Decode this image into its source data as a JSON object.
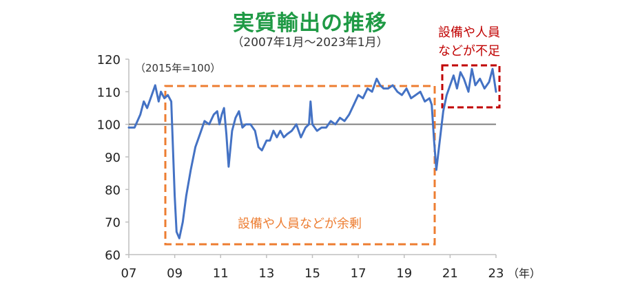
{
  "chart_data": {
    "type": "line",
    "title": "実質輸出の推移",
    "subtitle": "（2007年1月～2023年1月）",
    "index_note": "（2015年=100）",
    "x_unit_label": "（年）",
    "x_tick_labels": [
      "07",
      "09",
      "11",
      "13",
      "15",
      "17",
      "19",
      "21",
      "23"
    ],
    "x_tick_years": [
      2007,
      2009,
      2011,
      2013,
      2015,
      2017,
      2019,
      2021,
      2023
    ],
    "xlim": [
      2007.0,
      2023.0
    ],
    "ylim": [
      60,
      120
    ],
    "y_ticks": [
      60,
      70,
      80,
      90,
      100,
      110,
      120
    ],
    "y_tick_labels": [
      "60",
      "70",
      "80",
      "90",
      "100",
      "110",
      "120"
    ],
    "reference_line": 100,
    "series": [
      {
        "color": "#4472c4",
        "x": [
          2007.0,
          2007.25,
          2007.5,
          2007.65,
          2007.8,
          2008.0,
          2008.15,
          2008.3,
          2008.4,
          2008.55,
          2008.7,
          2008.85,
          2009.0,
          2009.08,
          2009.2,
          2009.35,
          2009.5,
          2009.7,
          2009.9,
          2010.1,
          2010.3,
          2010.5,
          2010.7,
          2010.85,
          2010.95,
          2011.05,
          2011.15,
          2011.25,
          2011.35,
          2011.5,
          2011.65,
          2011.8,
          2011.95,
          2012.1,
          2012.3,
          2012.5,
          2012.65,
          2012.8,
          2013.0,
          2013.15,
          2013.3,
          2013.45,
          2013.6,
          2013.75,
          2013.9,
          2014.1,
          2014.3,
          2014.5,
          2014.7,
          2014.85,
          2014.92,
          2015.0,
          2015.2,
          2015.4,
          2015.6,
          2015.8,
          2016.0,
          2016.2,
          2016.4,
          2016.6,
          2016.8,
          2017.0,
          2017.2,
          2017.4,
          2017.6,
          2017.8,
          2017.95,
          2018.1,
          2018.3,
          2018.5,
          2018.7,
          2018.9,
          2019.1,
          2019.3,
          2019.5,
          2019.7,
          2019.9,
          2020.1,
          2020.2,
          2020.3,
          2020.4,
          2020.55,
          2020.7,
          2020.85,
          2021.0,
          2021.15,
          2021.3,
          2021.45,
          2021.6,
          2021.8,
          2021.95,
          2022.1,
          2022.3,
          2022.5,
          2022.7,
          2022.85,
          2023.0
        ],
        "y": [
          99,
          99,
          103,
          107,
          105,
          109,
          112,
          107,
          110,
          108,
          109,
          107,
          78,
          67,
          65,
          70,
          78,
          86,
          93,
          97,
          101,
          100,
          103,
          104,
          100,
          103,
          105,
          97,
          87,
          98,
          102,
          104,
          99,
          100,
          100,
          98,
          93,
          92,
          95,
          95,
          98,
          96,
          98,
          96,
          97,
          98,
          100,
          96,
          99,
          100,
          107,
          100,
          98,
          99,
          99,
          101,
          100,
          102,
          101,
          103,
          106,
          109,
          108,
          111,
          110,
          114,
          112,
          111,
          111,
          112,
          110,
          109,
          111,
          108,
          109,
          110,
          107,
          108,
          106,
          95,
          86,
          95,
          104,
          109,
          112,
          115,
          111,
          116,
          114,
          110,
          117,
          112,
          114,
          111,
          113,
          117,
          110
        ]
      }
    ]
  },
  "annotations": {
    "surplus_box_label": "設備や人員などが余剰",
    "shortage_box_label_line1": "設備や人員",
    "shortage_box_label_line2": "などが不足",
    "surplus_color": "#ed7d31",
    "shortage_color": "#c00000"
  },
  "colors": {
    "title": "#1f9a45",
    "reference_line": "#808080",
    "axis": "#bfbfbf"
  }
}
